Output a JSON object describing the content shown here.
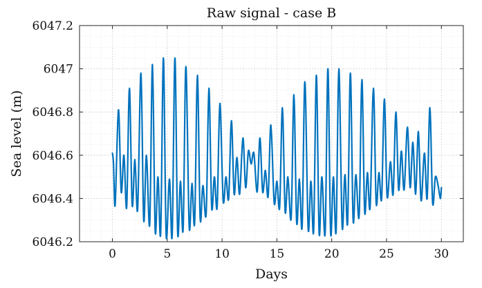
{
  "chart_data": {
    "type": "line",
    "title": "Raw signal - case B",
    "xlabel": "Days",
    "ylabel": "Sea level (m)",
    "xlim": [
      -3,
      32
    ],
    "ylim": [
      6046.2,
      6047.2
    ],
    "xticks": [
      0,
      5,
      10,
      15,
      20,
      25,
      30
    ],
    "xtick_labels": [
      "0",
      "5",
      "10",
      "15",
      "20",
      "25",
      "30"
    ],
    "yticks": [
      6046.2,
      6046.4,
      6046.6,
      6046.8,
      6047.0,
      6047.2
    ],
    "ytick_labels": [
      "6046.2",
      "6046.4",
      "6046.6",
      "6046.8",
      "6047",
      "6047.2"
    ],
    "grid": true,
    "minor_grid": true,
    "series": [
      {
        "color": "#0072BD",
        "x": [
          0.0,
          0.1,
          0.25,
          0.55,
          0.8,
          1.05,
          1.3,
          1.55,
          1.8,
          2.05,
          2.3,
          2.6,
          2.85,
          3.1,
          3.4,
          3.65,
          3.9,
          4.15,
          4.4,
          4.65,
          4.9,
          5.2,
          5.45,
          5.7,
          5.95,
          6.2,
          6.45,
          6.7,
          7.0,
          7.25,
          7.5,
          7.75,
          8.0,
          8.25,
          8.55,
          8.8,
          9.05,
          9.3,
          9.55,
          9.8,
          10.1,
          10.35,
          10.6,
          10.85,
          11.1,
          11.35,
          11.6,
          11.9,
          12.15,
          12.4,
          12.65,
          12.9,
          13.2,
          13.45,
          13.7,
          13.95,
          14.2,
          14.45,
          14.75,
          15.0,
          15.25,
          15.5,
          15.75,
          16.0,
          16.3,
          16.55,
          16.8,
          17.05,
          17.3,
          17.55,
          17.85,
          18.1,
          18.35,
          18.6,
          18.85,
          19.1,
          19.4,
          19.65,
          19.9,
          20.15,
          20.4,
          20.65,
          20.95,
          21.2,
          21.45,
          21.7,
          21.95,
          22.2,
          22.5,
          22.75,
          23.0,
          23.25,
          23.5,
          23.8,
          24.05,
          24.3,
          24.55,
          24.8,
          25.05,
          25.35,
          25.6,
          25.85,
          26.1,
          26.35,
          26.6,
          26.9,
          27.15,
          27.4,
          27.65,
          27.9,
          28.15,
          28.45,
          28.7,
          28.95,
          29.2,
          29.45,
          29.7,
          29.9,
          30.0
        ],
        "y": [
          6046.61,
          6046.56,
          6046.37,
          6046.81,
          6046.43,
          6046.6,
          6046.36,
          6046.91,
          6046.37,
          6046.58,
          6046.35,
          6046.98,
          6046.3,
          6046.6,
          6046.28,
          6047.02,
          6046.25,
          6046.5,
          6046.24,
          6047.05,
          6046.23,
          6046.49,
          6046.23,
          6047.05,
          6046.24,
          6046.48,
          6046.26,
          6047.01,
          6046.27,
          6046.47,
          6046.29,
          6046.97,
          6046.31,
          6046.46,
          6046.33,
          6046.91,
          6046.36,
          6046.5,
          6046.36,
          6046.84,
          6046.39,
          6046.5,
          6046.4,
          6046.76,
          6046.42,
          6046.59,
          6046.42,
          6046.68,
          6046.45,
          6046.62,
          6046.56,
          6046.61,
          6046.43,
          6046.68,
          6046.43,
          6046.53,
          6046.41,
          6046.74,
          6046.38,
          6046.48,
          6046.36,
          6046.82,
          6046.34,
          6046.5,
          6046.31,
          6046.88,
          6046.29,
          6046.49,
          6046.27,
          6046.94,
          6046.26,
          6046.48,
          6046.25,
          6046.97,
          6046.24,
          6046.5,
          6046.24,
          6047.0,
          6046.24,
          6046.5,
          6046.25,
          6047.0,
          6046.27,
          6046.51,
          6046.29,
          6046.98,
          6046.3,
          6046.51,
          6046.32,
          6046.95,
          6046.34,
          6046.52,
          6046.36,
          6046.91,
          6046.38,
          6046.52,
          6046.4,
          6046.86,
          6046.41,
          6046.57,
          6046.42,
          6046.8,
          6046.44,
          6046.62,
          6046.44,
          6046.73,
          6046.45,
          6046.66,
          6046.42,
          6046.71,
          6046.39,
          6046.61,
          6046.4,
          6046.82,
          6046.38,
          6046.5,
          6046.46,
          6046.4,
          6046.45
        ]
      }
    ]
  }
}
